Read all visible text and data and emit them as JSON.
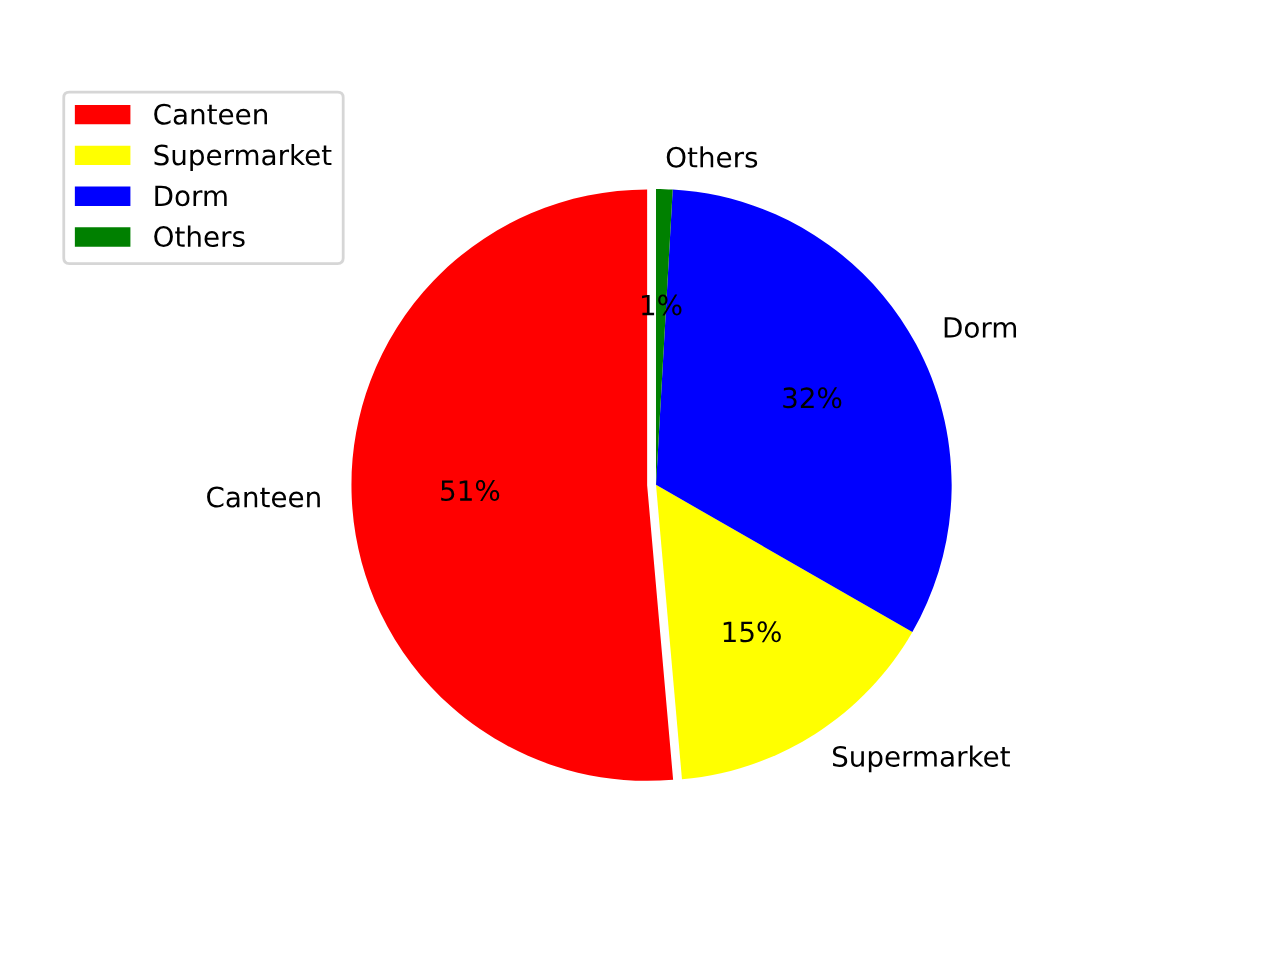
{
  "chart_data": {
    "type": "pie",
    "categories": [
      "Canteen",
      "Supermarket",
      "Dorm",
      "Others"
    ],
    "values": [
      51.4,
      15.3,
      32.4,
      0.9
    ],
    "value_labels": [
      "51%",
      "15%",
      "32%",
      "1%"
    ],
    "colors": [
      "#ff0000",
      "#ffff00",
      "#0000ff",
      "#008000"
    ],
    "legend": "top left"
  }
}
